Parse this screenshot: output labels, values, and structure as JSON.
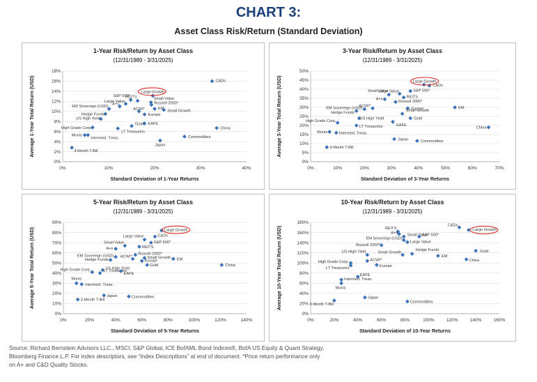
{
  "header": {
    "title": "CHART 3:",
    "subtitle": "Asset Class Risk/Return (Standard Deviation)"
  },
  "source": {
    "lines": [
      "Source: Richard Bernstein Advisors LLC., MSCI, S&P Global, ICE BofAML Bond Indices®, BofA US Equity & Quant Strategy,",
      "Bloomberg Finance L.P. For index descriptors, see “Index Descriptions” at end of document. *Price return performance only",
      "on A+ and C&D Quality Stocks."
    ]
  },
  "chart_data": [
    {
      "type": "scatter",
      "title": "1-Year Risk/Return by Asset Class",
      "subtitle": "(12/31/1989 - 3/31/2025)",
      "xlabel": "Standard Deviation of  1-Year Returns",
      "ylabel": "Average 1-Year Total Return (USD)",
      "xlim": [
        0,
        40
      ],
      "ylim": [
        0,
        18
      ],
      "x_ticks": [
        "0%",
        "10%",
        "20%",
        "30%",
        "40%"
      ],
      "y_ticks": [
        "0%",
        "2%",
        "4%",
        "6%",
        "8%",
        "10%",
        "12%",
        "14%",
        "16%",
        "18%"
      ],
      "highlight": "Large Growth",
      "marker_color": "#3d73b8",
      "points": [
        {
          "label": "C&Ds",
          "x": 32.5,
          "y": 16.0
        },
        {
          "label": "Large Growth",
          "x": 19.6,
          "y": 13.1
        },
        {
          "label": "REITS",
          "x": 16.3,
          "y": 12.1
        },
        {
          "label": "Small Value",
          "x": 19.2,
          "y": 11.8
        },
        {
          "label": "S&P 500*",
          "x": 14.8,
          "y": 12.3
        },
        {
          "label": "Large Value",
          "x": 13.7,
          "y": 11.5
        },
        {
          "label": "Russell 2000*",
          "x": 19.3,
          "y": 11.3
        },
        {
          "label": "A+s",
          "x": 12.4,
          "y": 11.0
        },
        {
          "label": "EM",
          "x": 20.0,
          "y": 10.5
        },
        {
          "label": "EM Sovereign (USD)",
          "x": 10.1,
          "y": 10.5
        },
        {
          "label": "Small Growth",
          "x": 22.0,
          "y": 10.3
        },
        {
          "label": "ACWI*",
          "x": 16.6,
          "y": 10.0
        },
        {
          "label": "Hedge Funds",
          "x": 9.3,
          "y": 9.5
        },
        {
          "label": "Europe",
          "x": 17.8,
          "y": 9.4
        },
        {
          "label": "US High Yield",
          "x": 8.3,
          "y": 8.5
        },
        {
          "label": "EAFE",
          "x": 17.8,
          "y": 7.6
        },
        {
          "label": "Gold",
          "x": 15.0,
          "y": 7.1
        },
        {
          "label": "High Grade Corp.",
          "x": 6.5,
          "y": 6.8
        },
        {
          "label": "LT Treasuries",
          "x": 12.0,
          "y": 6.6
        },
        {
          "label": "China",
          "x": 33.5,
          "y": 6.7
        },
        {
          "label": "Munis",
          "x": 4.8,
          "y": 5.3
        },
        {
          "label": "Intermed. Treas.",
          "x": 5.5,
          "y": 5.3
        },
        {
          "label": "Commodities",
          "x": 26.5,
          "y": 5.0
        },
        {
          "label": "Japan",
          "x": 21.2,
          "y": 4.2
        },
        {
          "label": "3-Month T-Bill",
          "x": 2.0,
          "y": 2.8
        }
      ]
    },
    {
      "type": "scatter",
      "title": "3-Year Risk/Return by Asset Class",
      "subtitle": "(12/31/1989 - 3/31/2025)",
      "xlabel": "Standard Deviation of  3-Year Returns",
      "ylabel": "Average 3-Year Total Return (USD)",
      "xlim": [
        0,
        70
      ],
      "ylim": [
        0,
        50
      ],
      "x_ticks": [
        "0%",
        "10%",
        "20%",
        "30%",
        "40%",
        "50%",
        "60%",
        "70%"
      ],
      "y_ticks": [
        "0%",
        "5%",
        "10%",
        "15%",
        "20%",
        "25%",
        "30%",
        "35%",
        "40%",
        "45%",
        "50%"
      ],
      "highlight": "Large Growth",
      "marker_color": "#3d73b8",
      "points": [
        {
          "label": "C&Ds",
          "x": 44.0,
          "y": 42.0
        },
        {
          "label": "Large Growth",
          "x": 42.0,
          "y": 42.5
        },
        {
          "label": "Small Value",
          "x": 29.0,
          "y": 37.0
        },
        {
          "label": "Large Value",
          "x": 33.0,
          "y": 37.5
        },
        {
          "label": "S&P 500*",
          "x": 37.0,
          "y": 39.0
        },
        {
          "label": "A+s",
          "x": 27.5,
          "y": 34.5
        },
        {
          "label": "REITS",
          "x": 34.5,
          "y": 35.5
        },
        {
          "label": "Russell 2000*",
          "x": 31.5,
          "y": 33.0
        },
        {
          "label": "ACWI*",
          "x": 23.0,
          "y": 29.5
        },
        {
          "label": "EM Sovereign (USD)",
          "x": 20.0,
          "y": 29.0
        },
        {
          "label": "Hedge Funds",
          "x": 17.0,
          "y": 28.0
        },
        {
          "label": "EM",
          "x": 53.5,
          "y": 30.0
        },
        {
          "label": "Europe",
          "x": 36.0,
          "y": 29.5
        },
        {
          "label": "Small Growth",
          "x": 34.0,
          "y": 26.5
        },
        {
          "label": "US High Yield",
          "x": 18.0,
          "y": 24.0
        },
        {
          "label": "EAFE",
          "x": 30.5,
          "y": 22.0
        },
        {
          "label": "Gold",
          "x": 37.0,
          "y": 24.0
        },
        {
          "label": "High Grade Corp.",
          "x": 10.0,
          "y": 21.5
        },
        {
          "label": "LT Treasuries",
          "x": 17.0,
          "y": 20.0
        },
        {
          "label": "China",
          "x": 66.0,
          "y": 19.0
        },
        {
          "label": "Munis",
          "x": 7.0,
          "y": 16.5
        },
        {
          "label": "Intermed. Treas.",
          "x": 9.5,
          "y": 16.0
        },
        {
          "label": "Japan",
          "x": 31.0,
          "y": 12.5
        },
        {
          "label": "Commodities",
          "x": 39.5,
          "y": 11.5
        },
        {
          "label": "3-Month T-Bill",
          "x": 6.0,
          "y": 8.0
        }
      ]
    },
    {
      "type": "scatter",
      "title": "5-Year Risk/Return by Asset Class",
      "subtitle": "(12/31/1989 - 3/31/2025)",
      "xlabel": "Standard Deviation of 5-Year Returns",
      "ylabel": "Average 5-Year Total Return (USD)",
      "xlim": [
        0,
        140
      ],
      "ylim": [
        0,
        90
      ],
      "x_ticks": [
        "0%",
        "20%",
        "40%",
        "60%",
        "80%",
        "100%",
        "120%",
        "140%"
      ],
      "y_ticks": [
        "0%",
        "10%",
        "20%",
        "30%",
        "40%",
        "50%",
        "60%",
        "70%",
        "80%",
        "90%"
      ],
      "highlight": "Large Growth",
      "marker_color": "#3d73b8",
      "points": [
        {
          "label": "Large Growth",
          "x": 75.0,
          "y": 82.0
        },
        {
          "label": "C&Ds",
          "x": 70.0,
          "y": 76.0
        },
        {
          "label": "Large Value",
          "x": 62.0,
          "y": 73.0
        },
        {
          "label": "S&P 500*",
          "x": 67.0,
          "y": 70.0
        },
        {
          "label": "Small Value",
          "x": 47.0,
          "y": 67.0
        },
        {
          "label": "REITS",
          "x": 58.0,
          "y": 66.0
        },
        {
          "label": "A+s",
          "x": 40.0,
          "y": 64.0
        },
        {
          "label": "Russell 2000*",
          "x": 55.0,
          "y": 58.0
        },
        {
          "label": "ACWI*",
          "x": 53.0,
          "y": 54.0
        },
        {
          "label": "EM Sovereign (USD)",
          "x": 40.0,
          "y": 56.0
        },
        {
          "label": "Hedge Funds",
          "x": 36.0,
          "y": 53.0
        },
        {
          "label": "Small Growth",
          "x": 62.0,
          "y": 55.0
        },
        {
          "label": "Europe",
          "x": 60.0,
          "y": 52.0
        },
        {
          "label": "EM",
          "x": 84.0,
          "y": 54.0
        },
        {
          "label": "Gold",
          "x": 64.0,
          "y": 48.0
        },
        {
          "label": "US High Yield",
          "x": 30.0,
          "y": 43.0
        },
        {
          "label": "LT Treasuries",
          "x": 28.0,
          "y": 40.0
        },
        {
          "label": "High Grade Corp.",
          "x": 22.0,
          "y": 41.0
        },
        {
          "label": "EAFE",
          "x": 44.0,
          "y": 42.0
        },
        {
          "label": "China",
          "x": 121.0,
          "y": 48.0
        },
        {
          "label": "Munis",
          "x": 10.0,
          "y": 30.0
        },
        {
          "label": "Intermed. Treas.",
          "x": 14.0,
          "y": 29.0
        },
        {
          "label": "Japan",
          "x": 31.0,
          "y": 18.0
        },
        {
          "label": "Commodities",
          "x": 50.0,
          "y": 17.0
        },
        {
          "label": "3-Month T-Bill",
          "x": 11.0,
          "y": 14.0
        }
      ]
    },
    {
      "type": "scatter",
      "title": "10-Year Risk/Return by Asset Class",
      "subtitle": "(12/31/1989 - 3/31/2025)",
      "xlabel": "Standard Deviation of 10-Year Returns",
      "ylabel": "Average 10-Year Total Return (USD)",
      "xlim": [
        0,
        160
      ],
      "ylim": [
        0,
        180
      ],
      "x_ticks": [
        "0%",
        "20%",
        "40%",
        "60%",
        "80%",
        "100%",
        "120%",
        "140%",
        "160%"
      ],
      "y_ticks": [
        "0%",
        "20%",
        "40%",
        "60%",
        "80%",
        "100%",
        "120%",
        "140%",
        "160%",
        "180%"
      ],
      "highlight": "Large Growth",
      "marker_color": "#3d73b8",
      "points": [
        {
          "label": "C&Ds",
          "x": 126.0,
          "y": 170.0
        },
        {
          "label": "Large Growth",
          "x": 134.0,
          "y": 165.0
        },
        {
          "label": "REITS",
          "x": 74.0,
          "y": 162.0
        },
        {
          "label": "A+s",
          "x": 75.0,
          "y": 157.0
        },
        {
          "label": "Small Value",
          "x": 79.0,
          "y": 152.0
        },
        {
          "label": "S&P 500*",
          "x": 92.0,
          "y": 152.0
        },
        {
          "label": "EM Sovereign (USD)",
          "x": 79.0,
          "y": 145.0
        },
        {
          "label": "Large Value",
          "x": 82.0,
          "y": 141.0
        },
        {
          "label": "Russell 2000*",
          "x": 60.0,
          "y": 135.0
        },
        {
          "label": "Gold",
          "x": 140.0,
          "y": 124.0
        },
        {
          "label": "Hedge Funds",
          "x": 86.0,
          "y": 118.0
        },
        {
          "label": "US High Yield",
          "x": 48.0,
          "y": 116.0
        },
        {
          "label": "Small Growth",
          "x": 78.0,
          "y": 116.0
        },
        {
          "label": "EM",
          "x": 108.0,
          "y": 114.0
        },
        {
          "label": "China",
          "x": 132.0,
          "y": 107.0
        },
        {
          "label": "ACWI*",
          "x": 48.0,
          "y": 104.0
        },
        {
          "label": "High Grade Corp.",
          "x": 34.0,
          "y": 100.0
        },
        {
          "label": "Europe",
          "x": 56.0,
          "y": 96.0
        },
        {
          "label": "LT Treasuries",
          "x": 34.0,
          "y": 95.0
        },
        {
          "label": "EAFE",
          "x": 40.0,
          "y": 73.0
        },
        {
          "label": "Intermed. Treas.",
          "x": 26.0,
          "y": 67.0
        },
        {
          "label": "Munis",
          "x": 26.0,
          "y": 60.0
        },
        {
          "label": "Japan",
          "x": 46.0,
          "y": 32.0
        },
        {
          "label": "Commodities",
          "x": 82.0,
          "y": 24.0
        },
        {
          "label": "3-Month T-Bill",
          "x": 20.0,
          "y": 26.0
        }
      ]
    }
  ]
}
